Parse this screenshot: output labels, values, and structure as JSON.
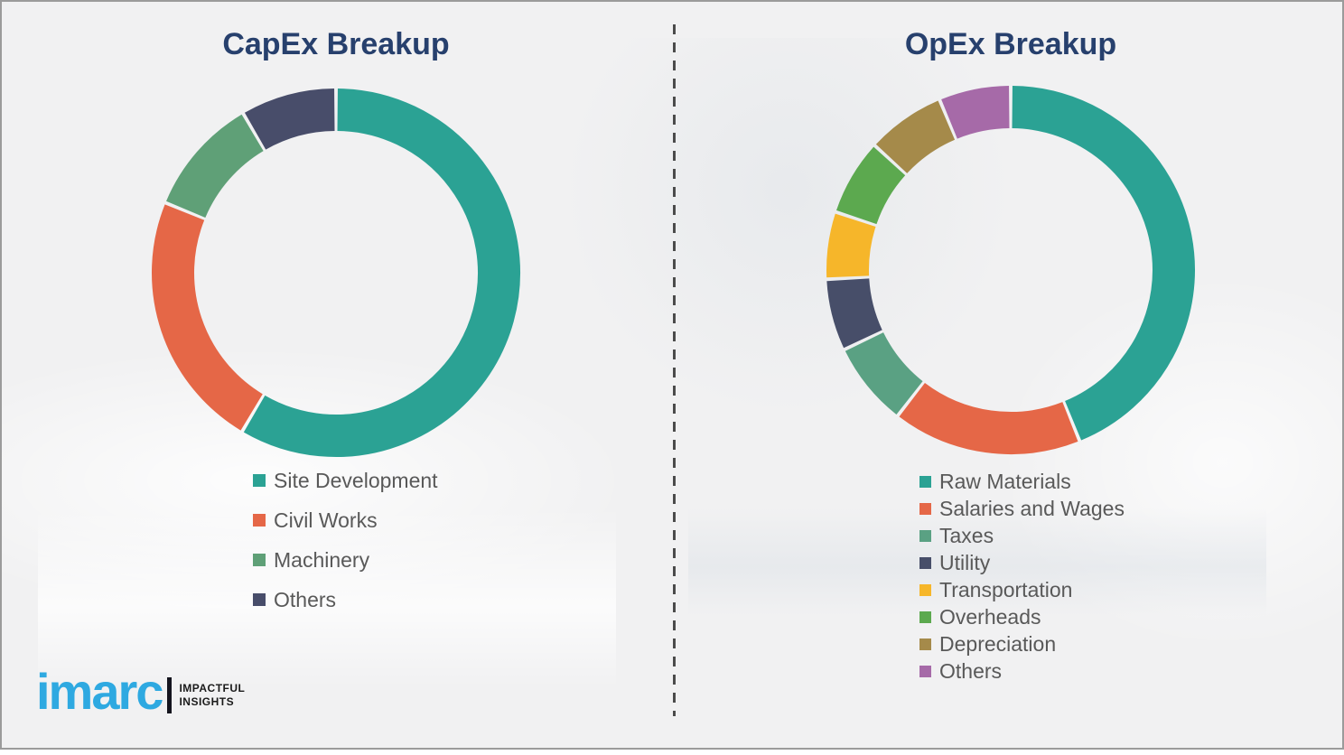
{
  "page": {
    "background_color": "#f1f1f2",
    "divider_color": "#4b4b4b",
    "title_color": "#27406d",
    "legend_text_color": "#595959"
  },
  "chart_data": [
    {
      "type": "pie",
      "subtype": "donut",
      "title": "CapEx Breakup",
      "categories": [
        "Site Development",
        "Civil Works",
        "Machinery",
        "Others"
      ],
      "values": [
        58.5,
        22.7,
        10.4,
        8.4
      ],
      "colors": [
        "#2BA294",
        "#E56747",
        "#5FA077",
        "#484D6A"
      ],
      "legend_position": "below",
      "start_angle_deg": 0,
      "direction": "clockwise"
    },
    {
      "type": "pie",
      "subtype": "donut",
      "title": "OpEx Breakup",
      "categories": [
        "Raw Materials",
        "Salaries and Wages",
        "Taxes",
        "Utility",
        "Transportation",
        "Overheads",
        "Depreciation",
        "Others"
      ],
      "values": [
        43.9,
        16.6,
        7.4,
        6.3,
        5.9,
        6.7,
        6.9,
        6.3
      ],
      "colors": [
        "#2BA294",
        "#E56747",
        "#5AA183",
        "#474E69",
        "#F6B62A",
        "#5CA94F",
        "#A58A4A",
        "#A66AA8"
      ],
      "legend_position": "below",
      "start_angle_deg": 0,
      "direction": "clockwise"
    }
  ],
  "branding": {
    "logo_text": "imarc",
    "tagline_line1": "IMPACTFUL",
    "tagline_line2": "INSIGHTS",
    "logo_color": "#2EA9E1"
  }
}
